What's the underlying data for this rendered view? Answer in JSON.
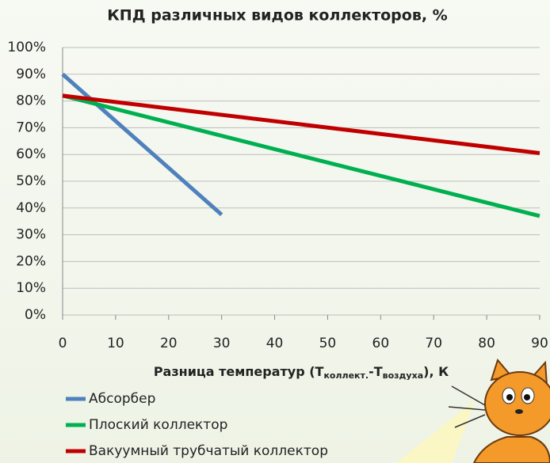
{
  "chart_data": {
    "type": "line",
    "title": "КПД различных видов коллекторов, %",
    "x_label_parts": [
      "Разница температур (T",
      "коллект.",
      "-T",
      "воздуха",
      "), К"
    ],
    "xlim": [
      0,
      90
    ],
    "xticks": [
      0,
      10,
      20,
      30,
      40,
      50,
      60,
      70,
      80,
      90
    ],
    "ylim": [
      0,
      100
    ],
    "yticks": [
      {
        "value": 0,
        "label": "0%"
      },
      {
        "value": 10,
        "label": "10%"
      },
      {
        "value": 20,
        "label": "20%"
      },
      {
        "value": 30,
        "label": "30%"
      },
      {
        "value": 40,
        "label": "40%"
      },
      {
        "value": 50,
        "label": "50%"
      },
      {
        "value": 60,
        "label": "60%"
      },
      {
        "value": 70,
        "label": "70%"
      },
      {
        "value": 80,
        "label": "80%"
      },
      {
        "value": 90,
        "label": "90%"
      },
      {
        "value": 100,
        "label": "100%"
      }
    ],
    "grid": true,
    "series": [
      {
        "name": "Абсорбер",
        "color": "#4f81bd",
        "x": [
          0,
          30
        ],
        "values": [
          90,
          37.5
        ]
      },
      {
        "name": "Плоский коллектор",
        "color": "#00b050",
        "x": [
          0,
          90
        ],
        "values": [
          82,
          37
        ]
      },
      {
        "name": "Вакуумный трубчатый коллектор",
        "color": "#c00000",
        "x": [
          0,
          90
        ],
        "values": [
          82,
          60.5
        ]
      }
    ]
  }
}
